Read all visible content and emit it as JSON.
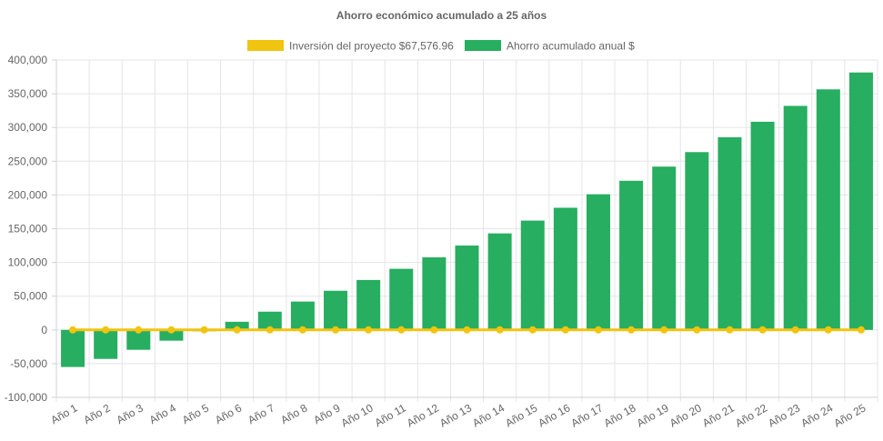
{
  "chart_data": {
    "type": "bar",
    "title": "Ahorro económico acumulado a 25 años",
    "legend_position": "top-center",
    "grid": true,
    "xlabel": "",
    "ylabel": "",
    "ylim": [
      -100000,
      400000
    ],
    "y_ticks": [
      "-100,000",
      "-50,000",
      "0",
      "50,000",
      "100,000",
      "150,000",
      "200,000",
      "250,000",
      "300,000",
      "350,000",
      "400,000"
    ],
    "y_tick_values": [
      -100000,
      -50000,
      0,
      50000,
      100000,
      150000,
      200000,
      250000,
      300000,
      350000,
      400000
    ],
    "categories": [
      "Año 1",
      "Año 2",
      "Año 3",
      "Año 4",
      "Año 5",
      "Año 6",
      "Año 7",
      "Año 8",
      "Año 9",
      "Año 10",
      "Año 11",
      "Año 12",
      "Año 13",
      "Año 14",
      "Año 15",
      "Año 16",
      "Año 17",
      "Año 18",
      "Año 19",
      "Año 20",
      "Año 21",
      "Año 22",
      "Año 23",
      "Año 24",
      "Año 25"
    ],
    "series": [
      {
        "name": "Inversión del proyecto $67,576.96",
        "type": "line",
        "color": "#f1c40f",
        "values": [
          0,
          0,
          0,
          0,
          0,
          0,
          0,
          0,
          0,
          0,
          0,
          0,
          0,
          0,
          0,
          0,
          0,
          0,
          0,
          0,
          0,
          0,
          0,
          0,
          0
        ]
      },
      {
        "name": "Ahorro acumulado anual $",
        "type": "bar",
        "color": "#27ae60",
        "values": [
          -55000,
          -43000,
          -29500,
          -16000,
          -2000,
          12000,
          27000,
          42000,
          58000,
          74000,
          90500,
          107500,
          125000,
          143000,
          162000,
          181000,
          201000,
          221000,
          242000,
          263500,
          285500,
          308500,
          332000,
          356500,
          381500
        ]
      }
    ]
  }
}
